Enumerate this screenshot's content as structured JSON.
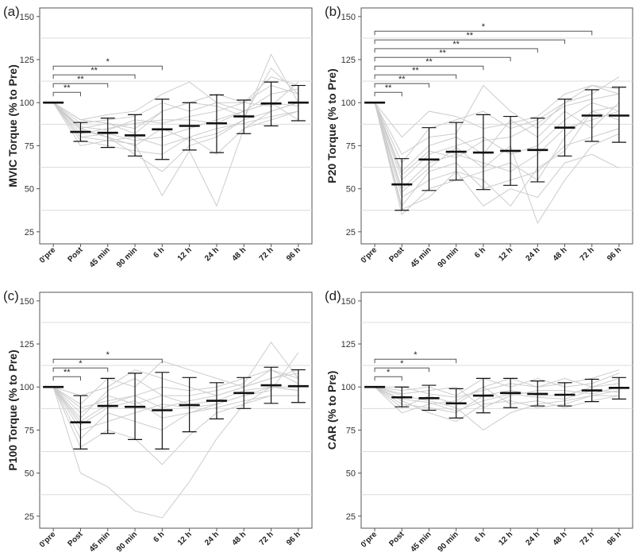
{
  "chart_data": [
    {
      "type": "errorbar",
      "panel_label": "(a)",
      "ylabel": "MVIC Torque (% to Pre)",
      "categories": [
        "0'pre",
        "Post",
        "45 min",
        "90 min",
        "6 h",
        "12 h",
        "24 h",
        "48 h",
        "72 h",
        "96 h"
      ],
      "yticks": [
        25,
        50,
        75,
        100,
        125,
        150
      ],
      "ylim": [
        18,
        155
      ],
      "grid_lines": [
        37.5,
        62.5,
        87.5,
        112.5,
        137.5
      ],
      "mean": [
        100,
        83,
        82.5,
        81,
        84.5,
        86.5,
        88,
        92,
        99.5,
        100
      ],
      "lower": [
        100,
        77.5,
        74,
        69,
        67,
        72.5,
        71,
        82,
        86.5,
        89.5
      ],
      "upper": [
        100,
        88.5,
        91,
        93,
        102,
        100,
        104.5,
        101.5,
        112,
        110
      ],
      "individual_traces": [
        [
          100,
          90,
          88,
          85,
          95,
          100,
          105,
          100,
          110,
          105
        ],
        [
          100,
          80,
          82,
          78,
          80,
          85,
          90,
          95,
          100,
          98
        ],
        [
          100,
          85,
          80,
          70,
          60,
          75,
          80,
          90,
          95,
          100
        ],
        [
          100,
          75,
          78,
          80,
          75,
          80,
          70,
          85,
          90,
          95
        ],
        [
          100,
          88,
          90,
          92,
          100,
          95,
          100,
          100,
          115,
          110
        ],
        [
          100,
          82,
          85,
          88,
          90,
          90,
          88,
          95,
          105,
          108
        ],
        [
          100,
          78,
          75,
          72,
          70,
          80,
          85,
          88,
          92,
          95
        ],
        [
          100,
          85,
          88,
          82,
          95,
          100,
          98,
          92,
          120,
          105
        ],
        [
          100,
          80,
          78,
          76,
          46,
          72,
          40,
          85,
          95,
          100
        ],
        [
          100,
          86,
          84,
          90,
          88,
          92,
          95,
          100,
          98,
          112
        ],
        [
          100,
          84,
          80,
          75,
          85,
          78,
          82,
          90,
          128,
          100
        ],
        [
          100,
          90,
          93,
          95,
          105,
          112,
          100,
          95,
          100,
          90
        ]
      ],
      "significance": [
        {
          "from": "0'pre",
          "to": "Post",
          "label": "**"
        },
        {
          "from": "0'pre",
          "to": "45 min",
          "label": "**"
        },
        {
          "from": "0'pre",
          "to": "90 min",
          "label": "**"
        },
        {
          "from": "0'pre",
          "to": "6 h",
          "label": "*"
        }
      ]
    },
    {
      "type": "errorbar",
      "panel_label": "(b)",
      "ylabel": "P20 Torque (% to Pre)",
      "categories": [
        "0'pre",
        "Post",
        "45 min",
        "90 min",
        "6 h",
        "12 h",
        "24 h",
        "48 h",
        "72 h",
        "96 h"
      ],
      "yticks": [
        25,
        50,
        75,
        100,
        125,
        150
      ],
      "ylim": [
        18,
        155
      ],
      "grid_lines": [
        37.5,
        62.5,
        87.5,
        112.5,
        137.5
      ],
      "mean": [
        100,
        52.5,
        67,
        71.5,
        71,
        72,
        72.5,
        85.5,
        92.5,
        92.5
      ],
      "lower": [
        100,
        37.5,
        49,
        55,
        49.5,
        52,
        54,
        69,
        77.5,
        77
      ],
      "upper": [
        100,
        67.5,
        85.5,
        88.5,
        93,
        92,
        91,
        102,
        107.5,
        109
      ],
      "individual_traces": [
        [
          100,
          40,
          60,
          65,
          50,
          55,
          60,
          75,
          80,
          85
        ],
        [
          100,
          55,
          70,
          75,
          80,
          70,
          75,
          90,
          100,
          95
        ],
        [
          100,
          65,
          85,
          90,
          95,
          85,
          90,
          100,
          110,
          105
        ],
        [
          100,
          45,
          55,
          60,
          40,
          50,
          45,
          65,
          70,
          62
        ],
        [
          100,
          70,
          80,
          82,
          110,
          95,
          85,
          100,
          105,
          115
        ],
        [
          100,
          35,
          50,
          55,
          60,
          65,
          55,
          80,
          95,
          90
        ],
        [
          100,
          60,
          75,
          80,
          70,
          90,
          80,
          95,
          85,
          100
        ],
        [
          100,
          50,
          65,
          70,
          65,
          60,
          70,
          85,
          90,
          95
        ],
        [
          100,
          38,
          45,
          60,
          55,
          40,
          62,
          72,
          95,
          98
        ],
        [
          100,
          58,
          72,
          68,
          78,
          80,
          88,
          98,
          102,
          105
        ],
        [
          100,
          48,
          62,
          74,
          62,
          75,
          30,
          55,
          75,
          82
        ],
        [
          100,
          80,
          95,
          92,
          85,
          88,
          92,
          105,
          110,
          108
        ]
      ],
      "significance": [
        {
          "from": "0'pre",
          "to": "Post",
          "label": "**"
        },
        {
          "from": "0'pre",
          "to": "45 min",
          "label": "**"
        },
        {
          "from": "0'pre",
          "to": "90 min",
          "label": "**"
        },
        {
          "from": "0'pre",
          "to": "6 h",
          "label": "**"
        },
        {
          "from": "0'pre",
          "to": "12 h",
          "label": "**"
        },
        {
          "from": "0'pre",
          "to": "24 h",
          "label": "**"
        },
        {
          "from": "0'pre",
          "to": "48 h",
          "label": "**"
        },
        {
          "from": "0'pre",
          "to": "72 h",
          "label": "*"
        }
      ]
    },
    {
      "type": "errorbar",
      "panel_label": "(c)",
      "ylabel": "P100 Torque (% to Pre)",
      "categories": [
        "0'pre",
        "Post",
        "45 min",
        "90 min",
        "6 h",
        "12 h",
        "24 h",
        "48 h",
        "72 h",
        "96 h"
      ],
      "yticks": [
        25,
        50,
        75,
        100,
        125,
        150
      ],
      "ylim": [
        18,
        155
      ],
      "grid_lines": [
        37.5,
        62.5,
        87.5,
        112.5,
        137.5
      ],
      "mean": [
        100,
        79.5,
        89,
        88.5,
        86.5,
        89.5,
        92,
        96.5,
        101,
        100.5
      ],
      "lower": [
        100,
        64,
        73,
        69.5,
        64,
        74,
        81.5,
        87.5,
        90.5,
        91
      ],
      "upper": [
        100,
        95,
        105,
        108,
        108.5,
        105.5,
        102.5,
        105.5,
        111.5,
        110
      ],
      "individual_traces": [
        [
          100,
          50,
          42,
          28,
          24,
          45,
          70,
          90,
          100,
          98
        ],
        [
          100,
          80,
          90,
          95,
          88,
          92,
          95,
          100,
          105,
          108
        ],
        [
          100,
          90,
          105,
          100,
          115,
          110,
          105,
          100,
          110,
          105
        ],
        [
          100,
          70,
          85,
          80,
          75,
          85,
          90,
          95,
          100,
          100
        ],
        [
          100,
          85,
          95,
          90,
          95,
          95,
          98,
          102,
          126,
          105
        ],
        [
          100,
          65,
          75,
          70,
          55,
          72,
          85,
          90,
          95,
          95
        ],
        [
          100,
          95,
          100,
          110,
          105,
          100,
          95,
          100,
          105,
          110
        ],
        [
          100,
          75,
          80,
          85,
          90,
          88,
          90,
          95,
          98,
          120
        ],
        [
          100,
          88,
          92,
          95,
          100,
          98,
          100,
          105,
          110,
          102
        ],
        [
          100,
          82,
          98,
          105,
          95,
          90,
          92,
          98,
          100,
          98
        ],
        [
          100,
          78,
          88,
          92,
          82,
          85,
          88,
          92,
          95,
          95
        ]
      ],
      "significance": [
        {
          "from": "0'pre",
          "to": "Post",
          "label": "**"
        },
        {
          "from": "0'pre",
          "to": "45 min",
          "label": "*"
        },
        {
          "from": "0'pre",
          "to": "6 h",
          "label": "*"
        }
      ]
    },
    {
      "type": "errorbar",
      "panel_label": "(d)",
      "ylabel": "CAR (% to Pre)",
      "categories": [
        "0'pre",
        "Post",
        "45 min",
        "90 min",
        "6 h",
        "12 h",
        "24 h",
        "48 h",
        "72 h",
        "96 h"
      ],
      "yticks": [
        25,
        50,
        75,
        100,
        125,
        150
      ],
      "ylim": [
        18,
        155
      ],
      "grid_lines": [
        37.5,
        62.5,
        87.5,
        112.5,
        137.5
      ],
      "mean": [
        100,
        94,
        93.5,
        90.5,
        95,
        96.5,
        96,
        95.5,
        98,
        99.5
      ],
      "lower": [
        100,
        88.5,
        86.5,
        82,
        85,
        88,
        89,
        89,
        91.5,
        93
      ],
      "upper": [
        100,
        100,
        101,
        99,
        105,
        105,
        103.5,
        102.5,
        104.5,
        105.5
      ],
      "individual_traces": [
        [
          100,
          95,
          92,
          88,
          75,
          85,
          90,
          92,
          95,
          98
        ],
        [
          100,
          90,
          88,
          85,
          95,
          98,
          95,
          95,
          100,
          105
        ],
        [
          100,
          98,
          100,
          95,
          105,
          100,
          105,
          100,
          102,
          108
        ],
        [
          100,
          92,
          85,
          80,
          90,
          92,
          88,
          90,
          95,
          95
        ],
        [
          100,
          85,
          90,
          92,
          100,
          105,
          100,
          102,
          105,
          110
        ],
        [
          100,
          96,
          98,
          100,
          88,
          95,
          98,
          98,
          96,
          100
        ],
        [
          100,
          88,
          95,
          90,
          100,
          90,
          92,
          88,
          92,
          95
        ],
        [
          100,
          100,
          96,
          94,
          98,
          102,
          100,
          105,
          100,
          102
        ],
        [
          100,
          93,
          91,
          86,
          92,
          96,
          94,
          93,
          98,
          97
        ]
      ],
      "significance": [
        {
          "from": "0'pre",
          "to": "Post",
          "label": "*"
        },
        {
          "from": "0'pre",
          "to": "45 min",
          "label": "*"
        },
        {
          "from": "0'pre",
          "to": "90 min",
          "label": "*"
        }
      ]
    }
  ]
}
